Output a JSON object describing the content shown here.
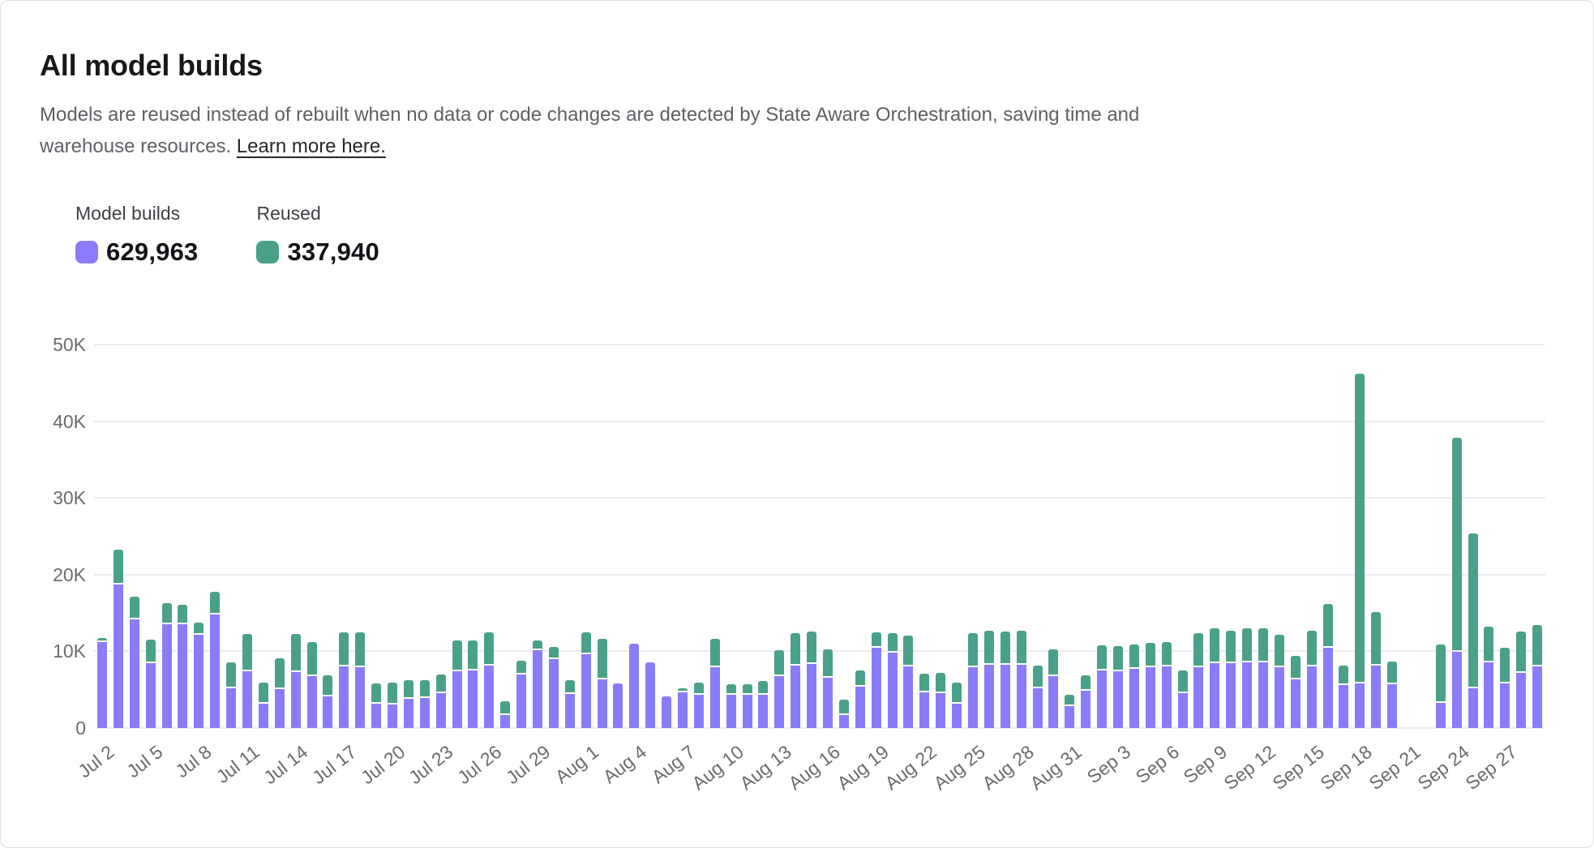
{
  "header": {
    "title": "All model builds",
    "description": "Models are reused instead of rebuilt when no data or code changes are detected by State Aware Orchestration, saving time and warehouse resources.",
    "link_text": "Learn more here."
  },
  "legend": {
    "items": [
      {
        "label": "Model builds",
        "value": "629,963",
        "color": "#8a7cf8"
      },
      {
        "label": "Reused",
        "value": "337,940",
        "color": "#4aa189"
      }
    ]
  },
  "chart_data": {
    "type": "bar",
    "stacked": true,
    "title": "All model builds",
    "unit_multiplier": 1000,
    "ylim": [
      0,
      50000
    ],
    "y_ticks": [
      "0",
      "10K",
      "20K",
      "30K",
      "40K",
      "50K"
    ],
    "grid": true,
    "x_tick_every": 3,
    "x_tick_labels": [
      "Jul 2",
      "Jul 5",
      "Jul 8",
      "Jul 11",
      "Jul 14",
      "Jul 17",
      "Jul 20",
      "Jul 23",
      "Jul 26",
      "Jul 29",
      "Aug 1",
      "Aug 4",
      "Aug 7",
      "Aug 10",
      "Aug 13",
      "Aug 16",
      "Aug 19",
      "Aug 22",
      "Aug 25",
      "Aug 28",
      "Aug 31",
      "Sep 3",
      "Sep 6",
      "Sep 9",
      "Sep 12",
      "Sep 15",
      "Sep 18",
      "Sep 21",
      "Sep 24",
      "Sep 27"
    ],
    "categories": [
      "Jul 2",
      "Jul 3",
      "Jul 4",
      "Jul 5",
      "Jul 6",
      "Jul 7",
      "Jul 8",
      "Jul 9",
      "Jul 10",
      "Jul 11",
      "Jul 12",
      "Jul 13",
      "Jul 14",
      "Jul 15",
      "Jul 16",
      "Jul 17",
      "Jul 18",
      "Jul 19",
      "Jul 20",
      "Jul 21",
      "Jul 22",
      "Jul 23",
      "Jul 24",
      "Jul 25",
      "Jul 26",
      "Jul 27",
      "Jul 28",
      "Jul 29",
      "Jul 30",
      "Jul 31",
      "Aug 1",
      "Aug 2",
      "Aug 3",
      "Aug 4",
      "Aug 5",
      "Aug 6",
      "Aug 7",
      "Aug 8",
      "Aug 9",
      "Aug 10",
      "Aug 11",
      "Aug 12",
      "Aug 13",
      "Aug 14",
      "Aug 15",
      "Aug 16",
      "Aug 17",
      "Aug 18",
      "Aug 19",
      "Aug 20",
      "Aug 21",
      "Aug 22",
      "Aug 23",
      "Aug 24",
      "Aug 25",
      "Aug 26",
      "Aug 27",
      "Aug 28",
      "Aug 29",
      "Aug 30",
      "Aug 31",
      "Sep 1",
      "Sep 2",
      "Sep 3",
      "Sep 4",
      "Sep 5",
      "Sep 6",
      "Sep 7",
      "Sep 8",
      "Sep 9",
      "Sep 10",
      "Sep 11",
      "Sep 12",
      "Sep 13",
      "Sep 14",
      "Sep 15",
      "Sep 16",
      "Sep 17",
      "Sep 18",
      "Sep 19",
      "Sep 20",
      "Sep 21",
      "Sep 22",
      "Sep 23",
      "Sep 24",
      "Sep 25",
      "Sep 26",
      "Sep 27",
      "Sep 28",
      "Sep 29"
    ],
    "series": [
      {
        "name": "Model builds",
        "color": "#8a7cf8",
        "values_in_thousands": [
          11.2,
          18.7,
          14.2,
          8.5,
          13.5,
          13.5,
          12.2,
          14.8,
          5.2,
          7.4,
          3.2,
          5.1,
          7.3,
          6.8,
          4.1,
          8.0,
          7.9,
          3.2,
          3.1,
          3.8,
          3.9,
          4.5,
          7.4,
          7.5,
          8.1,
          1.7,
          7.0,
          10.2,
          9.0,
          4.4,
          9.6,
          6.3,
          5.8,
          11.0,
          8.6,
          4.1,
          4.6,
          4.3,
          7.9,
          4.3,
          4.3,
          4.3,
          6.8,
          8.1,
          8.4,
          6.6,
          1.7,
          5.4,
          10.5,
          9.8,
          8.0,
          4.6,
          4.5,
          3.2,
          7.9,
          8.2,
          8.2,
          8.2,
          5.2,
          6.8,
          2.9,
          4.9,
          7.5,
          7.4,
          7.7,
          7.9,
          8.0,
          4.5,
          7.9,
          8.5,
          8.5,
          8.6,
          8.6,
          7.9,
          6.3,
          8.0,
          10.5,
          5.6,
          5.8,
          8.1,
          5.7,
          null,
          null,
          3.3,
          9.9,
          5.2,
          8.6,
          5.8,
          7.2,
          8.0
        ]
      },
      {
        "name": "Reused",
        "color": "#4aa189",
        "values_in_thousands": [
          0.3,
          4.3,
          2.7,
          2.8,
          2.6,
          2.4,
          1.3,
          2.8,
          3.2,
          4.6,
          2.5,
          3.8,
          4.8,
          4.2,
          2.6,
          4.3,
          4.4,
          2.4,
          2.6,
          2.2,
          2.1,
          2.3,
          3.8,
          3.7,
          4.2,
          1.6,
          1.6,
          1.0,
          1.4,
          1.6,
          2.7,
          5.1,
          0,
          0,
          0,
          0,
          0.4,
          1.4,
          3.5,
          1.2,
          1.2,
          1.6,
          3.1,
          4.1,
          4.0,
          3.4,
          1.8,
          1.9,
          1.8,
          2.4,
          3.8,
          2.3,
          2.5,
          2.5,
          4.3,
          4.3,
          4.2,
          4.3,
          2.7,
          3.2,
          1.2,
          1.8,
          3.1,
          3.1,
          3.0,
          3.0,
          3.0,
          2.8,
          4.3,
          4.3,
          4.0,
          4.2,
          4.2,
          4.0,
          2.9,
          4.5,
          5.5,
          2.3,
          40.2,
          6.8,
          2.8,
          null,
          null,
          7.4,
          27.7,
          20.0,
          4.4,
          4.5,
          5.2,
          5.2
        ]
      }
    ],
    "legend_position": "top-left",
    "missing_dates": [
      "Sep 21",
      "Sep 22"
    ]
  },
  "colors": {
    "model_builds": "#8a7cf8",
    "reused": "#4aa189",
    "gridline": "#ededf0",
    "axis_text": "#6b6b70"
  }
}
